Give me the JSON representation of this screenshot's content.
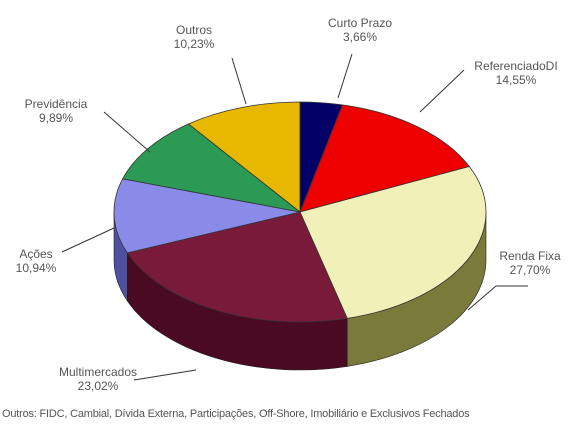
{
  "chart_data": {
    "type": "pie",
    "style": "3d-exploded-tilted",
    "slices": [
      {
        "label": "Curto Prazo",
        "value": 3.66,
        "value_label": "3,66%",
        "color": "#000066",
        "side": "#000033"
      },
      {
        "label": "ReferenciadoDI",
        "value": 14.55,
        "value_label": "14,55%",
        "color": "#ee0000",
        "side": "#8a0000"
      },
      {
        "label": "Renda Fixa",
        "value": 27.7,
        "value_label": "27,70%",
        "color": "#f0f0b8",
        "side": "#7a7a3a"
      },
      {
        "label": "Multimercados",
        "value": 23.02,
        "value_label": "23,02%",
        "color": "#7a1a3a",
        "side": "#4a0a22"
      },
      {
        "label": "Ações",
        "value": 10.94,
        "value_label": "10,94%",
        "color": "#8a8ae8",
        "side": "#5050a0"
      },
      {
        "label": "Previdência",
        "value": 9.89,
        "value_label": "9,89%",
        "color": "#2a9a55",
        "side": "#1a5a30"
      },
      {
        "label": "Outros",
        "value": 10.23,
        "value_label": "10,23%",
        "color": "#e8b800",
        "side": "#8a6a00"
      }
    ],
    "footnote": "Outros: FIDC, Cambial, Dívida Externa, Participações, Off-Shore, Imobiliário e Exclusivos Fechados"
  }
}
